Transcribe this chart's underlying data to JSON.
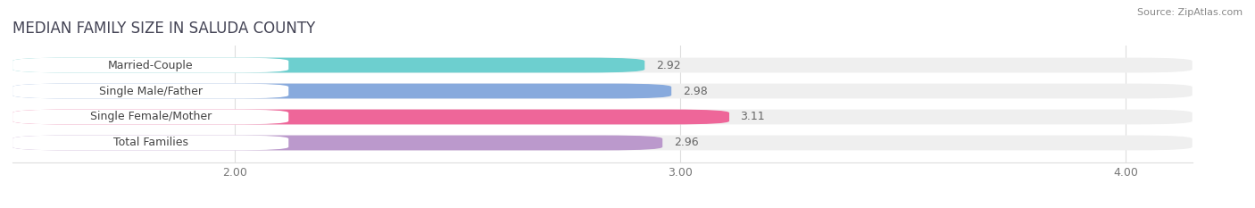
{
  "title": "MEDIAN FAMILY SIZE IN SALUDA COUNTY",
  "source": "Source: ZipAtlas.com",
  "categories": [
    "Married-Couple",
    "Single Male/Father",
    "Single Female/Mother",
    "Total Families"
  ],
  "values": [
    2.92,
    2.98,
    3.11,
    2.96
  ],
  "bar_colors": [
    "#6dcfcf",
    "#88aadd",
    "#ee6699",
    "#bb99cc"
  ],
  "background_color": "#ffffff",
  "bar_bg_color": "#efefef",
  "label_bg_color": "#ffffff",
  "xlim": [
    1.5,
    4.15
  ],
  "xmin": 1.5,
  "xticks": [
    2.0,
    3.0,
    4.0
  ],
  "xtick_labels": [
    "2.00",
    "3.00",
    "4.00"
  ],
  "label_fontsize": 9,
  "title_fontsize": 12,
  "value_fontsize": 9
}
